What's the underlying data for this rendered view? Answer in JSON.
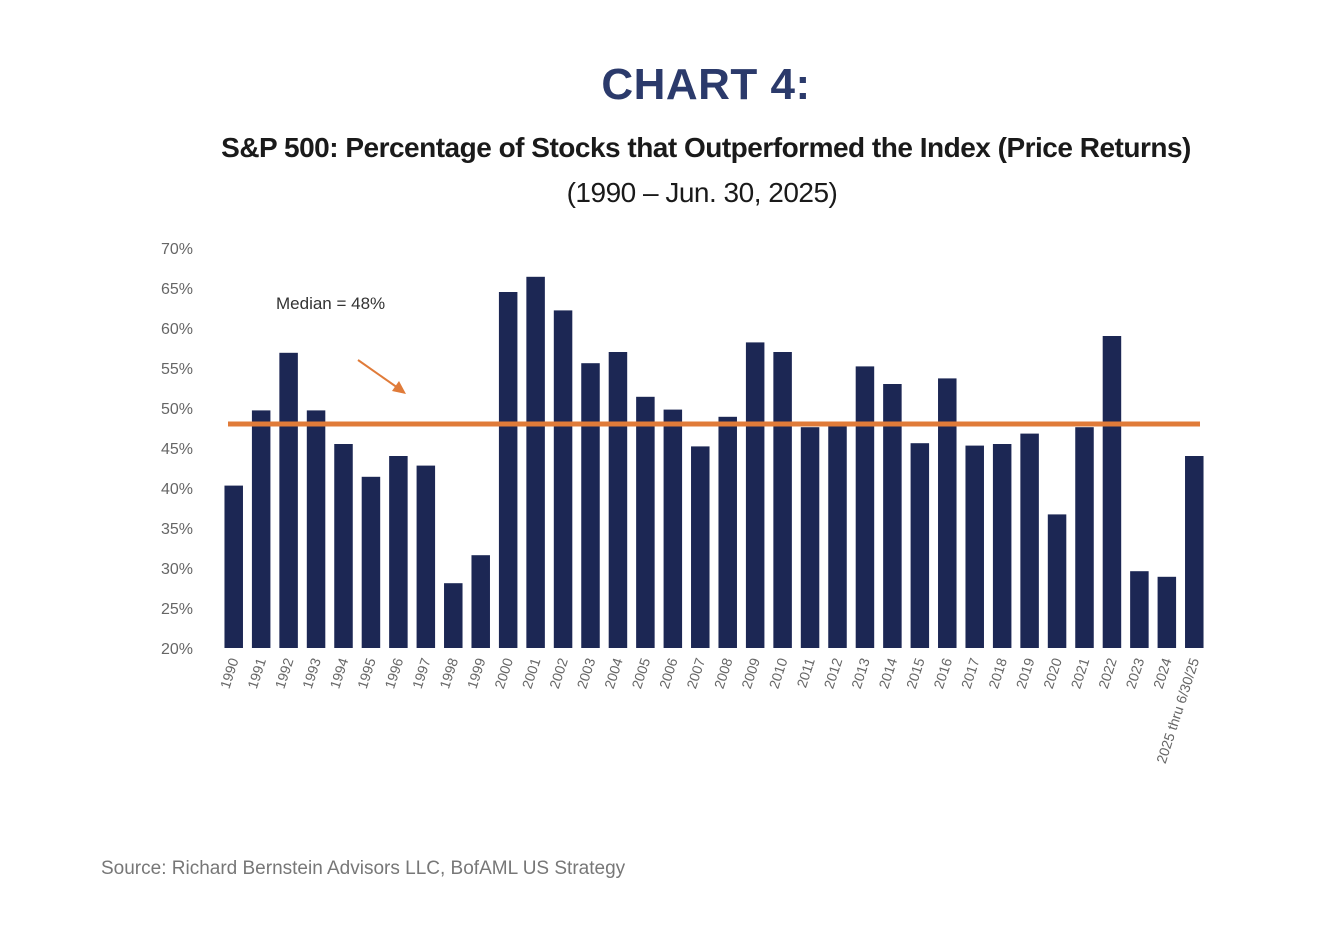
{
  "title": "CHART 4:",
  "subtitle": "S&P 500: Percentage of Stocks that Outperformed the Index (Price Returns)",
  "subtitle2": "(1990 – Jun. 30, 2025)",
  "source": "Source: Richard Bernstein Advisors LLC, BofAML US Strategy",
  "colors": {
    "bar": "#1c2754",
    "median_line": "#e07b39",
    "title": "#2b3a6b"
  },
  "chart_data": {
    "type": "bar",
    "title": "S&P 500: Percentage of Stocks that Outperformed the Index (Price Returns)",
    "xlabel": "",
    "ylabel": "",
    "ylim": [
      20,
      70
    ],
    "yticks": [
      20,
      25,
      30,
      35,
      40,
      45,
      50,
      55,
      60,
      65,
      70
    ],
    "ytick_labels": [
      "20%",
      "25%",
      "30%",
      "35%",
      "40%",
      "45%",
      "50%",
      "55%",
      "60%",
      "65%",
      "70%"
    ],
    "categories": [
      "1990",
      "1991",
      "1992",
      "1993",
      "1994",
      "1995",
      "1996",
      "1997",
      "1998",
      "1999",
      "2000",
      "2001",
      "2002",
      "2003",
      "2004",
      "2005",
      "2006",
      "2007",
      "2008",
      "2009",
      "2010",
      "2011",
      "2012",
      "2013",
      "2014",
      "2015",
      "2016",
      "2017",
      "2018",
      "2019",
      "2020",
      "2021",
      "2022",
      "2023",
      "2024",
      "2025 thru 6/30/25"
    ],
    "values": [
      40.3,
      49.7,
      56.9,
      49.7,
      45.5,
      41.4,
      44.0,
      42.8,
      28.1,
      31.6,
      64.5,
      66.4,
      62.2,
      55.6,
      57.0,
      51.4,
      49.8,
      45.2,
      48.9,
      58.2,
      57.0,
      47.6,
      48.2,
      55.2,
      53.0,
      45.6,
      53.7,
      45.3,
      45.5,
      46.8,
      36.7,
      47.6,
      59.0,
      29.6,
      28.9,
      44.0
    ],
    "median": 48,
    "median_label": "Median = 48%",
    "grid": false,
    "legend": "none"
  }
}
